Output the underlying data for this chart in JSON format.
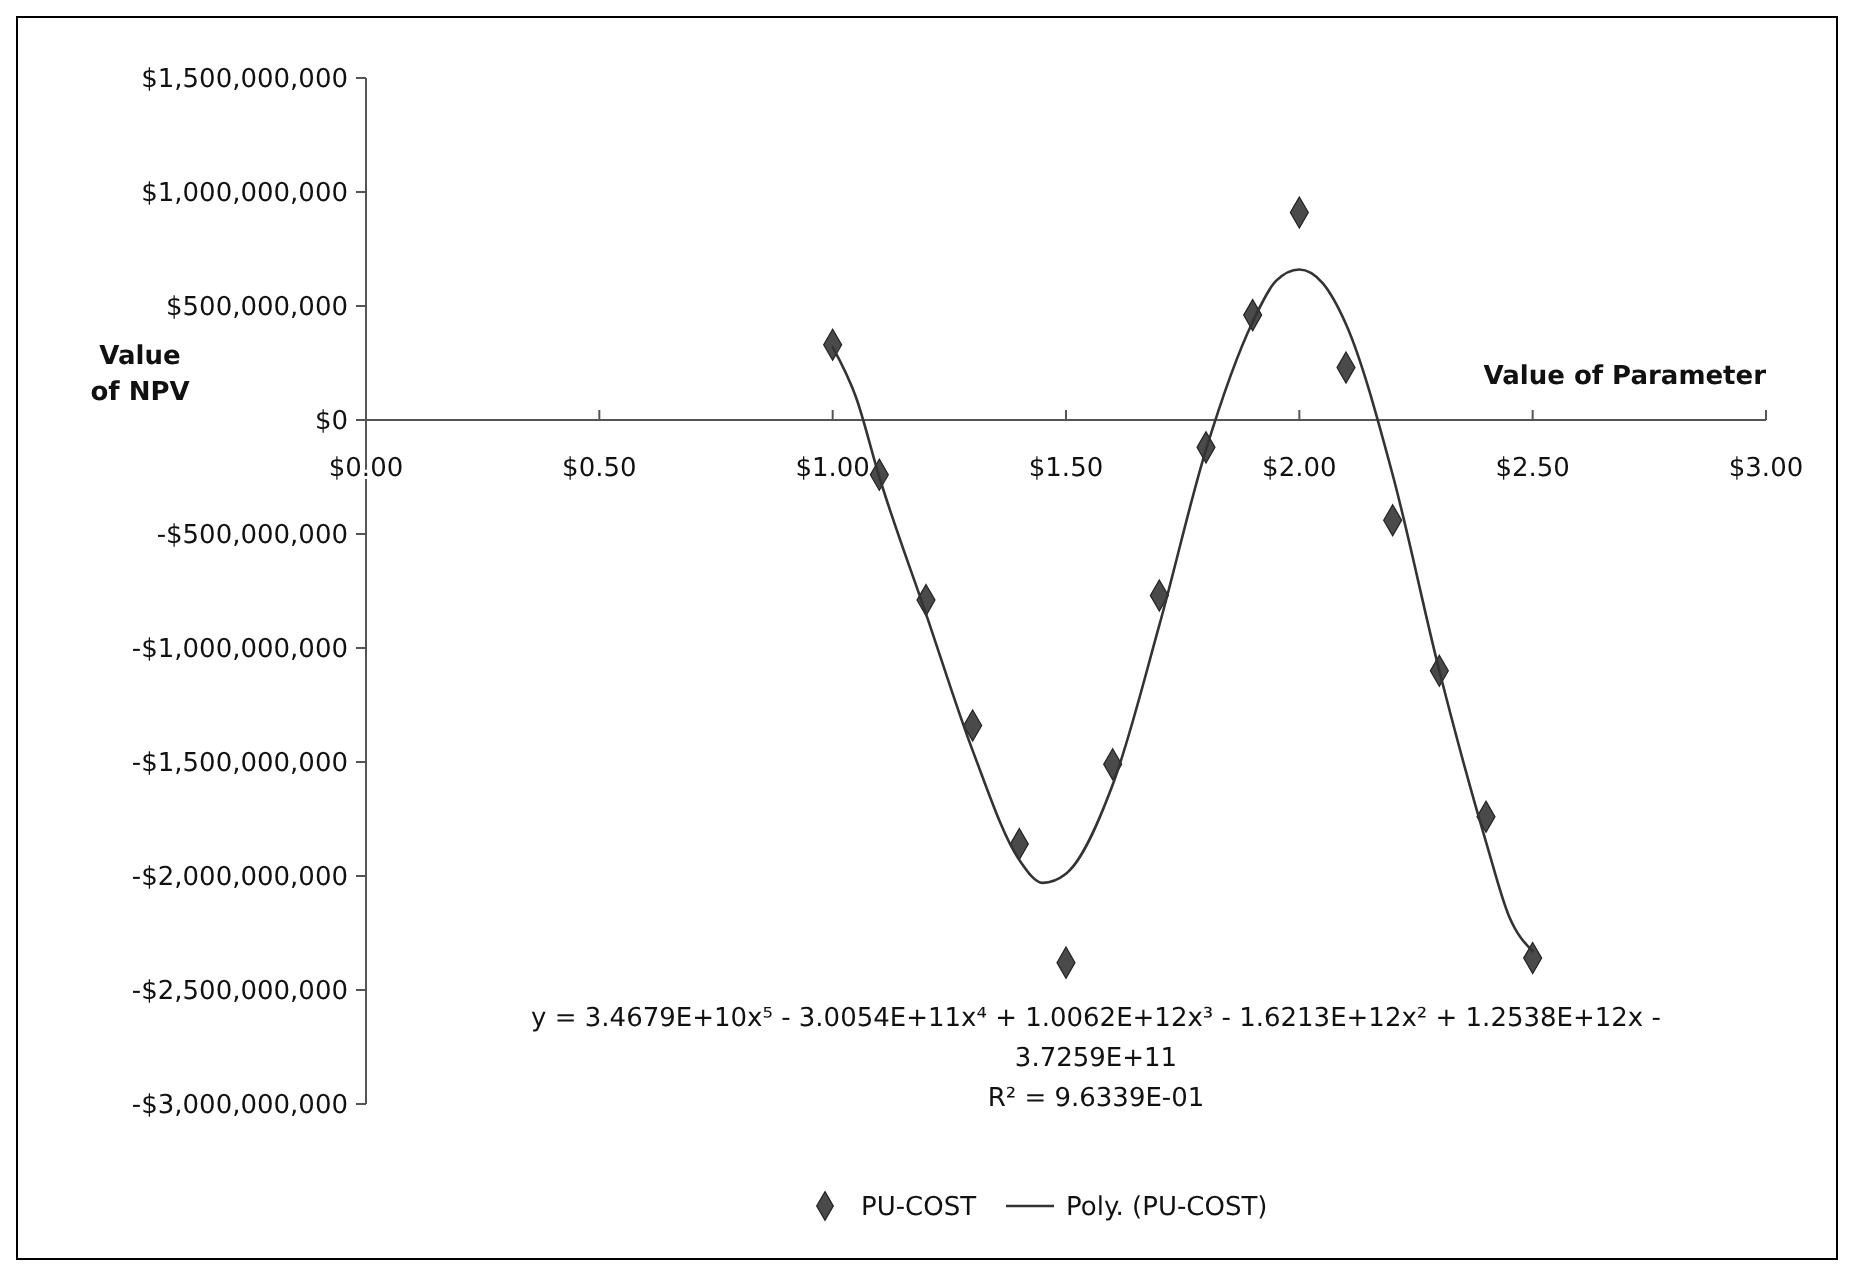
{
  "chart_data": {
    "type": "scatter",
    "xlabel": "Value of Parameter",
    "ylabel": "Value of NPV",
    "xlim": [
      0,
      3
    ],
    "xticks": [
      {
        "value": 0,
        "label": "$0.00"
      },
      {
        "value": 0.5,
        "label": "$0.50"
      },
      {
        "value": 1,
        "label": "$1.00"
      },
      {
        "value": 1.5,
        "label": "$1.50"
      },
      {
        "value": 2,
        "label": "$2.00"
      },
      {
        "value": 2.5,
        "label": "$2.50"
      },
      {
        "value": 3,
        "label": "$3.00"
      }
    ],
    "ylim": [
      -3000000000,
      1500000000
    ],
    "yticks": [
      {
        "value": -3000000000,
        "label": "-$3,000,000,000"
      },
      {
        "value": -2500000000,
        "label": "-$2,500,000,000"
      },
      {
        "value": -2000000000,
        "label": "-$2,000,000,000"
      },
      {
        "value": -1500000000,
        "label": "-$1,500,000,000"
      },
      {
        "value": -1000000000,
        "label": "-$1,000,000,000"
      },
      {
        "value": -500000000,
        "label": "-$500,000,000"
      },
      {
        "value": 0,
        "label": "$0"
      },
      {
        "value": 500000000,
        "label": "$500,000,000"
      },
      {
        "value": 1000000000,
        "label": "$1,000,000,000"
      },
      {
        "value": 1500000000,
        "label": "$1,500,000,000"
      }
    ],
    "series": [
      {
        "name": "PU-COST",
        "marker": "diamond",
        "color": "#4a4a4a",
        "x": [
          1.0,
          1.1,
          1.2,
          1.3,
          1.4,
          1.5,
          1.6,
          1.7,
          1.8,
          1.9,
          2.0,
          2.1,
          2.2,
          2.3,
          2.4,
          2.5
        ],
        "values": [
          330000000,
          -240000000,
          -790000000,
          -1340000000,
          -1860000000,
          -2380000000,
          -1510000000,
          -770000000,
          -120000000,
          460000000,
          910000000,
          230000000,
          -440000000,
          -1100000000,
          -1740000000,
          -2360000000
        ]
      },
      {
        "name": "Poly. (PU-COST)",
        "type": "line",
        "line_style": "solid",
        "color": "#333333",
        "x": [
          1.0,
          1.05,
          1.1,
          1.2,
          1.3,
          1.4,
          1.45,
          1.5,
          1.6,
          1.7,
          1.8,
          1.9,
          1.95,
          2.0,
          2.05,
          2.1,
          2.2,
          2.3,
          2.4,
          2.45,
          2.5
        ],
        "values": [
          320000000,
          100000000,
          -250000000,
          -850000000,
          -1450000000,
          -1930000000,
          -2030000000,
          -1990000000,
          -1600000000,
          -900000000,
          -130000000,
          430000000,
          610000000,
          660000000,
          600000000,
          420000000,
          -240000000,
          -1100000000,
          -1850000000,
          -2180000000,
          -2330000000
        ]
      }
    ],
    "annotations": [
      "y = 3.4679E+10x⁵ - 3.0054E+11x⁴ + 1.0062E+12x³ - 1.6213E+12x² + 1.2538E+12x - 3.7259E+11",
      "R² = 9.6339E-01"
    ],
    "legend": "bottom"
  }
}
